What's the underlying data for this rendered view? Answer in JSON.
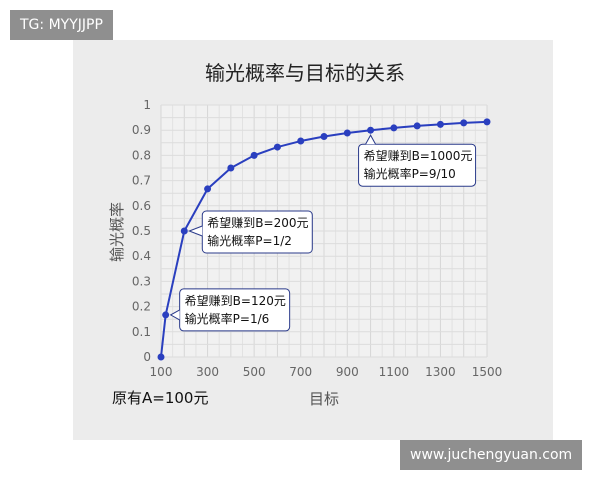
{
  "watermarks": {
    "top_left": "TG: MYYJJPP",
    "bottom_right": "www.juchengyuan.com"
  },
  "chart_data": {
    "type": "line",
    "title": "输光概率与目标的关系",
    "xlabel": "目标",
    "ylabel": "输光概率",
    "note": "原有A=100元",
    "xlim": [
      100,
      1500
    ],
    "ylim": [
      0,
      1
    ],
    "xticks": [
      100,
      300,
      500,
      700,
      900,
      1100,
      1300,
      1500
    ],
    "yticks": [
      0,
      0.1,
      0.2,
      0.3,
      0.4,
      0.5,
      0.6,
      0.7,
      0.8,
      0.9,
      1
    ],
    "grid": true,
    "line_color": "#2a3fbf",
    "x": [
      100,
      120,
      200,
      300,
      400,
      500,
      600,
      700,
      800,
      900,
      1000,
      1100,
      1200,
      1300,
      1400,
      1500
    ],
    "y": [
      0,
      0.167,
      0.5,
      0.667,
      0.75,
      0.8,
      0.833,
      0.857,
      0.875,
      0.889,
      0.9,
      0.909,
      0.917,
      0.923,
      0.929,
      0.933
    ],
    "annotations": [
      {
        "x": 120,
        "y": 0.167,
        "lines": [
          "希望赚到B=120元",
          "输光概率P=1/6"
        ]
      },
      {
        "x": 200,
        "y": 0.5,
        "lines": [
          "希望赚到B=200元",
          "输光概率P=1/2"
        ]
      },
      {
        "x": 1000,
        "y": 0.9,
        "lines": [
          "希望赚到B=1000元",
          "输光概率P=9/10"
        ]
      }
    ]
  }
}
